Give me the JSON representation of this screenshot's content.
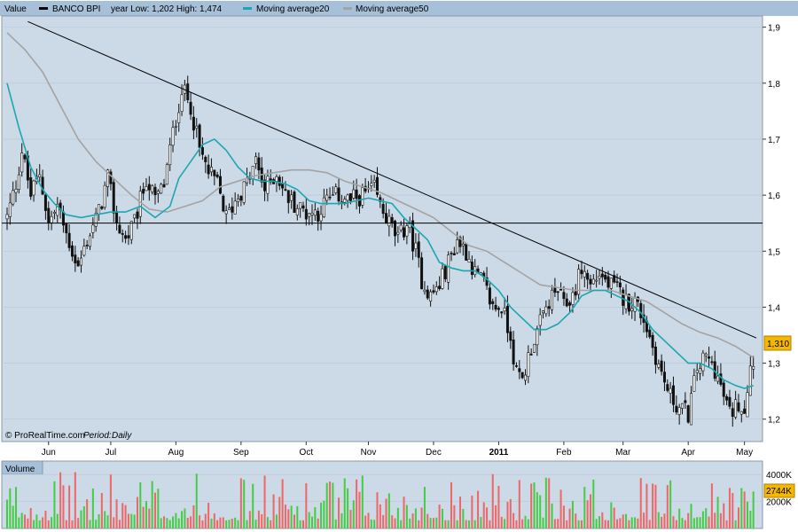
{
  "chart_data": {
    "type": "candlestick",
    "header": {
      "value_label": "Value",
      "instrument": "BANCO BPI",
      "year_range": "year Low: 1,202 High: 1,474",
      "ma20_label": "Moving average20",
      "ma50_label": "Moving average50"
    },
    "watermark": "© ProRealTime.com",
    "period_label": "Period:",
    "period_value": "Daily",
    "price_axis": {
      "ylim": [
        1.16,
        1.92
      ],
      "ticks": [
        {
          "value": 1.9,
          "label": "1,9"
        },
        {
          "value": 1.8,
          "label": "1,8"
        },
        {
          "value": 1.7,
          "label": "1,7"
        },
        {
          "value": 1.6,
          "label": "1,6"
        },
        {
          "value": 1.5,
          "label": "1,5"
        },
        {
          "value": 1.4,
          "label": "1,4"
        },
        {
          "value": 1.3,
          "label": "1,3"
        },
        {
          "value": 1.2,
          "label": "1,2"
        }
      ],
      "last_price": 1.31,
      "last_price_label": "1,310"
    },
    "months": [
      {
        "label": "Jun",
        "day": 14,
        "bold": false
      },
      {
        "label": "Jul",
        "day": 35,
        "bold": false
      },
      {
        "label": "Aug",
        "day": 57,
        "bold": false
      },
      {
        "label": "Sep",
        "day": 79,
        "bold": false
      },
      {
        "label": "Oct",
        "day": 101,
        "bold": false
      },
      {
        "label": "Nov",
        "day": 122,
        "bold": false
      },
      {
        "label": "Dec",
        "day": 144,
        "bold": false
      },
      {
        "label": "2011",
        "day": 166,
        "bold": true
      },
      {
        "label": "Feb",
        "day": 188,
        "bold": false
      },
      {
        "label": "Mar",
        "day": 208,
        "bold": false
      },
      {
        "label": "Apr",
        "day": 230,
        "bold": false
      },
      {
        "label": "May",
        "day": 249,
        "bold": false
      }
    ],
    "days_total": 253,
    "price_path": [
      [
        0,
        1.56
      ],
      [
        3,
        1.62
      ],
      [
        5,
        1.68
      ],
      [
        8,
        1.6
      ],
      [
        11,
        1.64
      ],
      [
        14,
        1.55
      ],
      [
        17,
        1.58
      ],
      [
        20,
        1.53
      ],
      [
        24,
        1.47
      ],
      [
        27,
        1.52
      ],
      [
        31,
        1.57
      ],
      [
        34,
        1.63
      ],
      [
        37,
        1.55
      ],
      [
        40,
        1.52
      ],
      [
        43,
        1.55
      ],
      [
        47,
        1.63
      ],
      [
        50,
        1.59
      ],
      [
        53,
        1.62
      ],
      [
        56,
        1.71
      ],
      [
        59,
        1.79
      ],
      [
        62,
        1.76
      ],
      [
        65,
        1.68
      ],
      [
        68,
        1.64
      ],
      [
        71,
        1.62
      ],
      [
        74,
        1.56
      ],
      [
        78,
        1.6
      ],
      [
        81,
        1.62
      ],
      [
        84,
        1.66
      ],
      [
        87,
        1.61
      ],
      [
        91,
        1.64
      ],
      [
        94,
        1.6
      ],
      [
        98,
        1.58
      ],
      [
        101,
        1.57
      ],
      [
        105,
        1.57
      ],
      [
        108,
        1.59
      ],
      [
        112,
        1.6
      ],
      [
        116,
        1.59
      ],
      [
        120,
        1.6
      ],
      [
        124,
        1.61
      ],
      [
        126,
        1.58
      ],
      [
        129,
        1.55
      ],
      [
        132,
        1.52
      ],
      [
        135,
        1.55
      ],
      [
        138,
        1.5
      ],
      [
        140,
        1.45
      ],
      [
        143,
        1.42
      ],
      [
        146,
        1.44
      ],
      [
        149,
        1.48
      ],
      [
        152,
        1.52
      ],
      [
        155,
        1.5
      ],
      [
        158,
        1.46
      ],
      [
        161,
        1.44
      ],
      [
        164,
        1.4
      ],
      [
        167,
        1.4
      ],
      [
        170,
        1.35
      ],
      [
        172,
        1.28
      ],
      [
        174,
        1.27
      ],
      [
        177,
        1.33
      ],
      [
        180,
        1.37
      ],
      [
        183,
        1.41
      ],
      [
        186,
        1.43
      ],
      [
        188,
        1.4
      ],
      [
        191,
        1.42
      ],
      [
        194,
        1.47
      ],
      [
        197,
        1.44
      ],
      [
        200,
        1.46
      ],
      [
        203,
        1.44
      ],
      [
        206,
        1.43
      ],
      [
        209,
        1.41
      ],
      [
        212,
        1.41
      ],
      [
        215,
        1.38
      ],
      [
        218,
        1.33
      ],
      [
        221,
        1.28
      ],
      [
        224,
        1.24
      ],
      [
        227,
        1.22
      ],
      [
        230,
        1.21
      ],
      [
        233,
        1.29
      ],
      [
        236,
        1.31
      ],
      [
        239,
        1.29
      ],
      [
        242,
        1.24
      ],
      [
        244,
        1.21
      ],
      [
        247,
        1.23
      ],
      [
        249,
        1.22
      ],
      [
        251,
        1.3
      ],
      [
        253,
        1.31
      ]
    ],
    "ma20_path": [
      [
        0,
        1.8
      ],
      [
        4,
        1.72
      ],
      [
        8,
        1.65
      ],
      [
        12,
        1.61
      ],
      [
        16,
        1.585
      ],
      [
        20,
        1.565
      ],
      [
        25,
        1.56
      ],
      [
        30,
        1.565
      ],
      [
        35,
        1.57
      ],
      [
        40,
        1.57
      ],
      [
        45,
        1.58
      ],
      [
        50,
        1.56
      ],
      [
        55,
        1.58
      ],
      [
        58,
        1.63
      ],
      [
        62,
        1.66
      ],
      [
        66,
        1.69
      ],
      [
        70,
        1.7
      ],
      [
        74,
        1.68
      ],
      [
        78,
        1.65
      ],
      [
        82,
        1.63
      ],
      [
        86,
        1.625
      ],
      [
        90,
        1.625
      ],
      [
        94,
        1.62
      ],
      [
        98,
        1.61
      ],
      [
        102,
        1.59
      ],
      [
        106,
        1.585
      ],
      [
        110,
        1.585
      ],
      [
        114,
        1.585
      ],
      [
        118,
        1.59
      ],
      [
        122,
        1.595
      ],
      [
        126,
        1.59
      ],
      [
        130,
        1.585
      ],
      [
        134,
        1.56
      ],
      [
        138,
        1.54
      ],
      [
        142,
        1.52
      ],
      [
        146,
        1.48
      ],
      [
        150,
        1.47
      ],
      [
        154,
        1.465
      ],
      [
        158,
        1.465
      ],
      [
        162,
        1.45
      ],
      [
        166,
        1.43
      ],
      [
        170,
        1.4
      ],
      [
        174,
        1.38
      ],
      [
        178,
        1.36
      ],
      [
        182,
        1.36
      ],
      [
        186,
        1.37
      ],
      [
        190,
        1.39
      ],
      [
        194,
        1.42
      ],
      [
        198,
        1.43
      ],
      [
        202,
        1.43
      ],
      [
        206,
        1.42
      ],
      [
        210,
        1.41
      ],
      [
        214,
        1.39
      ],
      [
        218,
        1.36
      ],
      [
        222,
        1.34
      ],
      [
        226,
        1.32
      ],
      [
        230,
        1.3
      ],
      [
        234,
        1.3
      ],
      [
        238,
        1.29
      ],
      [
        242,
        1.27
      ],
      [
        246,
        1.26
      ],
      [
        249,
        1.255
      ],
      [
        252,
        1.26
      ]
    ],
    "ma50_path": [
      [
        0,
        1.89
      ],
      [
        6,
        1.86
      ],
      [
        12,
        1.82
      ],
      [
        18,
        1.76
      ],
      [
        24,
        1.7
      ],
      [
        30,
        1.66
      ],
      [
        36,
        1.63
      ],
      [
        42,
        1.6
      ],
      [
        48,
        1.575
      ],
      [
        54,
        1.57
      ],
      [
        60,
        1.58
      ],
      [
        66,
        1.59
      ],
      [
        72,
        1.615
      ],
      [
        78,
        1.625
      ],
      [
        84,
        1.635
      ],
      [
        90,
        1.64
      ],
      [
        96,
        1.645
      ],
      [
        102,
        1.645
      ],
      [
        108,
        1.64
      ],
      [
        114,
        1.625
      ],
      [
        120,
        1.615
      ],
      [
        126,
        1.605
      ],
      [
        132,
        1.59
      ],
      [
        138,
        1.575
      ],
      [
        144,
        1.56
      ],
      [
        150,
        1.535
      ],
      [
        156,
        1.51
      ],
      [
        162,
        1.5
      ],
      [
        168,
        1.48
      ],
      [
        174,
        1.46
      ],
      [
        180,
        1.44
      ],
      [
        186,
        1.435
      ],
      [
        192,
        1.43
      ],
      [
        198,
        1.43
      ],
      [
        204,
        1.43
      ],
      [
        210,
        1.42
      ],
      [
        216,
        1.41
      ],
      [
        222,
        1.39
      ],
      [
        228,
        1.37
      ],
      [
        234,
        1.355
      ],
      [
        240,
        1.345
      ],
      [
        246,
        1.33
      ],
      [
        252,
        1.31
      ]
    ],
    "trendline": [
      [
        7,
        1.91
      ],
      [
        253,
        1.345
      ]
    ],
    "support_line": 1.55,
    "volume": {
      "label": "Volume",
      "ticks": [
        {
          "value": 4000,
          "label": "4000K"
        },
        {
          "value": 2000,
          "label": "2000K"
        }
      ],
      "vmax": 5000,
      "last_label": "2744K",
      "last_value": 2744,
      "colors": {
        "up": "#44cc44",
        "down": "#ee6666"
      }
    },
    "colors": {
      "plot_bg": "#ccd9e6",
      "candle": "#111111",
      "ma20": "#1aa8b0",
      "ma50": "#a3a3a3",
      "trendline": "#000000",
      "last_price_bg": "#f5b800"
    }
  }
}
